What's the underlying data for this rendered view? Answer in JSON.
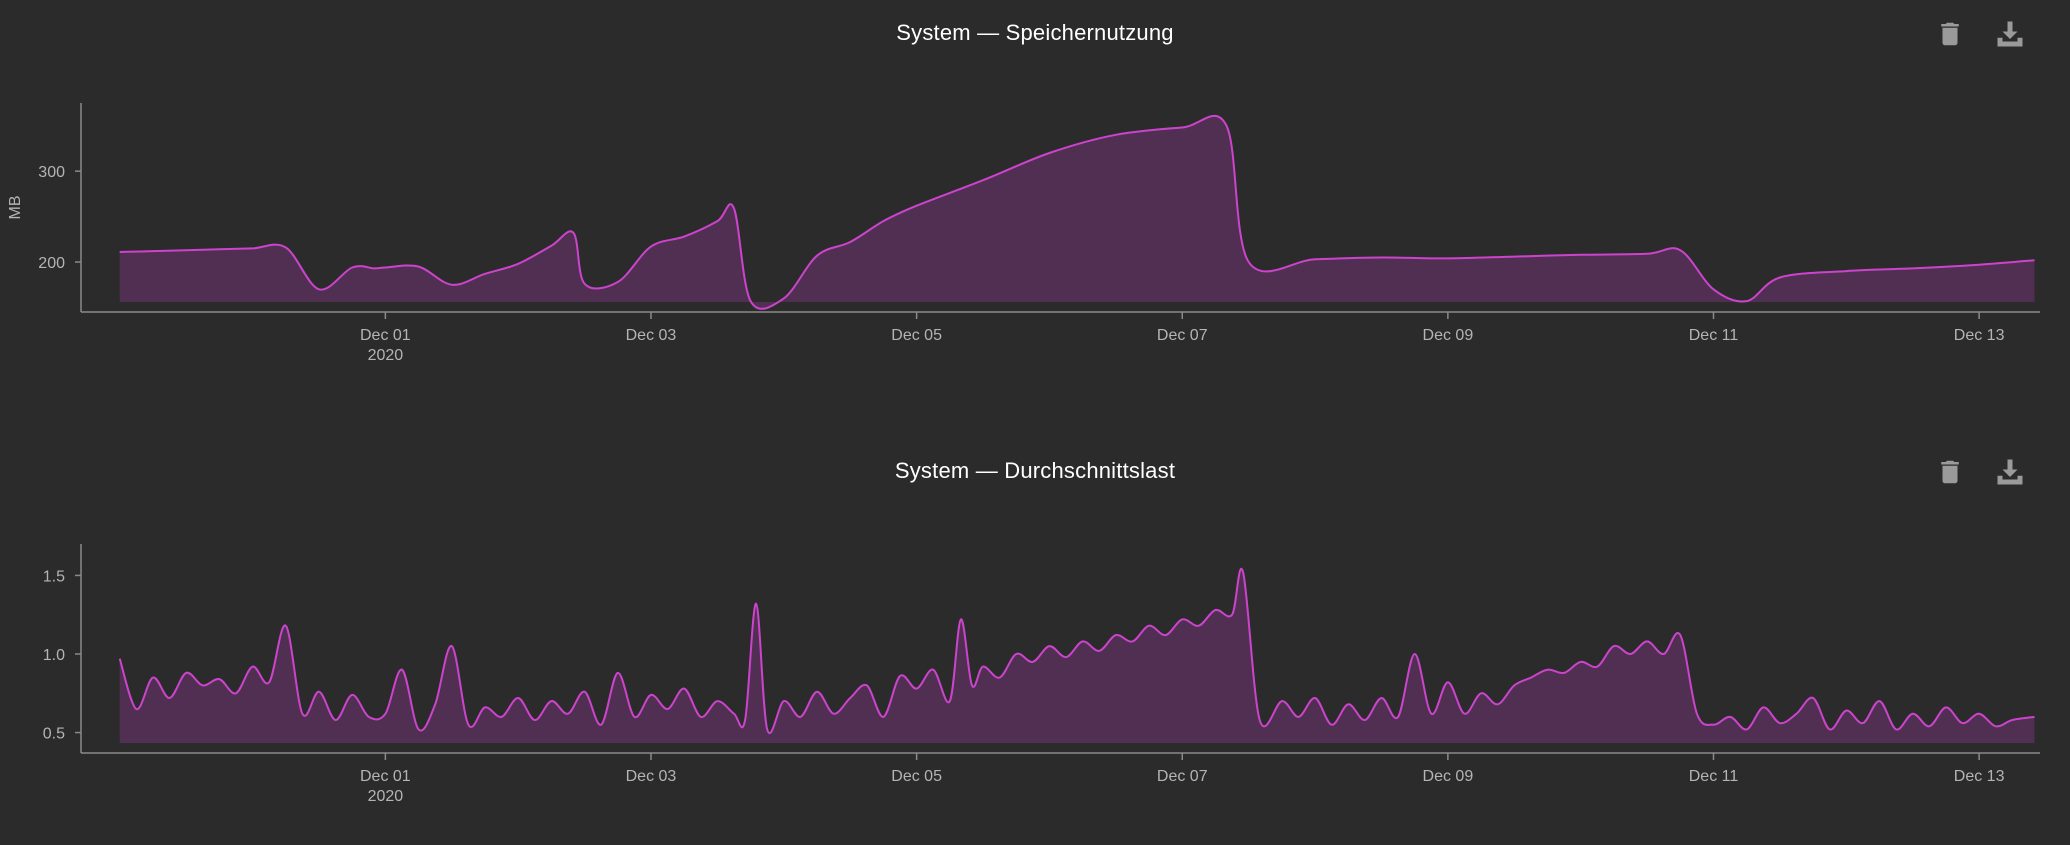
{
  "toolbar": {
    "delete_icon": "trash-icon",
    "download_icon": "download-icon"
  },
  "chart_data": [
    {
      "type": "area",
      "title": "System — Speichernutzung",
      "xlabel": "",
      "ylabel": "MB",
      "xlim": [
        "2020-11-28T17:00",
        "2020-12-13T11:00"
      ],
      "ylim": [
        145,
        375
      ],
      "yticks": [
        200,
        300
      ],
      "ytick_labels": [
        "200",
        "300"
      ],
      "xticks": [
        "2020-12-01",
        "2020-12-03",
        "2020-12-05",
        "2020-12-07",
        "2020-12-09",
        "2020-12-11",
        "2020-12-13"
      ],
      "xtick_labels": [
        "Dec 01",
        "Dec 03",
        "Dec 05",
        "Dec 07",
        "Dec 09",
        "Dec 11",
        "Dec 13"
      ],
      "year_label": "2020",
      "grid": false,
      "color": "#cc44cc",
      "fill_color": "#502f52",
      "series": [
        {
          "x": [
            "2020-11-29T00:00",
            "2020-11-29T06:00",
            "2020-11-29T12:00",
            "2020-11-29T18:00",
            "2020-11-30T00:00",
            "2020-11-30T06:00",
            "2020-11-30T12:00",
            "2020-11-30T18:00",
            "2020-11-30T22:00",
            "2020-12-01T00:00",
            "2020-12-01T06:00",
            "2020-12-01T12:00",
            "2020-12-01T18:00",
            "2020-12-02T00:00",
            "2020-12-02T06:00",
            "2020-12-02T10:00",
            "2020-12-02T12:00",
            "2020-12-02T18:00",
            "2020-12-03T00:00",
            "2020-12-03T06:00",
            "2020-12-03T12:00",
            "2020-12-03T15:00",
            "2020-12-03T18:00",
            "2020-12-04T00:00",
            "2020-12-04T06:00",
            "2020-12-04T12:00",
            "2020-12-04T18:00",
            "2020-12-05T00:00",
            "2020-12-05T12:00",
            "2020-12-06T00:00",
            "2020-12-06T12:00",
            "2020-12-07T00:00",
            "2020-12-07T08:00",
            "2020-12-07T12:00",
            "2020-12-08T00:00",
            "2020-12-08T12:00",
            "2020-12-09T00:00",
            "2020-12-09T12:00",
            "2020-12-10T00:00",
            "2020-12-10T12:00",
            "2020-12-10T18:00",
            "2020-12-11T00:00",
            "2020-12-11T06:00",
            "2020-12-11T12:00",
            "2020-12-12T00:00",
            "2020-12-12T12:00",
            "2020-12-13T00:00",
            "2020-12-13T10:00"
          ],
          "y": [
            211,
            212,
            213,
            214,
            215,
            216,
            170,
            194,
            193,
            194,
            195,
            175,
            187,
            198,
            218,
            232,
            176,
            178,
            217,
            228,
            245,
            259,
            157,
            160,
            207,
            222,
            245,
            262,
            290,
            320,
            340,
            348,
            350,
            200,
            203,
            205,
            204,
            206,
            208,
            209,
            213,
            170,
            157,
            183,
            190,
            193,
            197,
            202
          ]
        }
      ]
    },
    {
      "type": "area",
      "title": "System — Durchschnittslast",
      "xlabel": "",
      "ylabel": "",
      "xlim": [
        "2020-11-28T17:00",
        "2020-12-13T11:00"
      ],
      "ylim": [
        0.37,
        1.7
      ],
      "yticks": [
        0.5,
        1.0,
        1.5
      ],
      "ytick_labels": [
        "0.5",
        "1.0",
        "1.5"
      ],
      "xticks": [
        "2020-12-01",
        "2020-12-03",
        "2020-12-05",
        "2020-12-07",
        "2020-12-09",
        "2020-12-11",
        "2020-12-13"
      ],
      "xtick_labels": [
        "Dec 01",
        "Dec 03",
        "Dec 05",
        "Dec 07",
        "Dec 09",
        "Dec 11",
        "Dec 13"
      ],
      "year_label": "2020",
      "grid": false,
      "color": "#cc44cc",
      "fill_color": "#502f52",
      "series": [
        {
          "x": [
            "2020-11-29T00:00",
            "2020-11-29T03:00",
            "2020-11-29T06:00",
            "2020-11-29T09:00",
            "2020-11-29T12:00",
            "2020-11-29T15:00",
            "2020-11-29T18:00",
            "2020-11-29T21:00",
            "2020-11-30T00:00",
            "2020-11-30T03:00",
            "2020-11-30T06:00",
            "2020-11-30T09:00",
            "2020-11-30T12:00",
            "2020-11-30T15:00",
            "2020-11-30T18:00",
            "2020-11-30T21:00",
            "2020-12-01T00:00",
            "2020-12-01T03:00",
            "2020-12-01T06:00",
            "2020-12-01T09:00",
            "2020-12-01T12:00",
            "2020-12-01T15:00",
            "2020-12-01T18:00",
            "2020-12-01T21:00",
            "2020-12-02T00:00",
            "2020-12-02T03:00",
            "2020-12-02T06:00",
            "2020-12-02T09:00",
            "2020-12-02T12:00",
            "2020-12-02T15:00",
            "2020-12-02T18:00",
            "2020-12-02T21:00",
            "2020-12-03T00:00",
            "2020-12-03T03:00",
            "2020-12-03T06:00",
            "2020-12-03T09:00",
            "2020-12-03T12:00",
            "2020-12-03T15:00",
            "2020-12-03T17:00",
            "2020-12-03T19:00",
            "2020-12-03T21:00",
            "2020-12-04T00:00",
            "2020-12-04T03:00",
            "2020-12-04T06:00",
            "2020-12-04T09:00",
            "2020-12-04T12:00",
            "2020-12-04T15:00",
            "2020-12-04T18:00",
            "2020-12-04T21:00",
            "2020-12-05T00:00",
            "2020-12-05T03:00",
            "2020-12-05T06:00",
            "2020-12-05T08:00",
            "2020-12-05T10:00",
            "2020-12-05T12:00",
            "2020-12-05T15:00",
            "2020-12-05T18:00",
            "2020-12-05T21:00",
            "2020-12-06T00:00",
            "2020-12-06T03:00",
            "2020-12-06T06:00",
            "2020-12-06T09:00",
            "2020-12-06T12:00",
            "2020-12-06T15:00",
            "2020-12-06T18:00",
            "2020-12-06T21:00",
            "2020-12-07T00:00",
            "2020-12-07T03:00",
            "2020-12-07T06:00",
            "2020-12-07T09:00",
            "2020-12-07T11:00",
            "2020-12-07T14:00",
            "2020-12-07T18:00",
            "2020-12-07T21:00",
            "2020-12-08T00:00",
            "2020-12-08T03:00",
            "2020-12-08T06:00",
            "2020-12-08T09:00",
            "2020-12-08T12:00",
            "2020-12-08T15:00",
            "2020-12-08T18:00",
            "2020-12-08T21:00",
            "2020-12-09T00:00",
            "2020-12-09T03:00",
            "2020-12-09T06:00",
            "2020-12-09T09:00",
            "2020-12-09T12:00",
            "2020-12-09T15:00",
            "2020-12-09T18:00",
            "2020-12-09T21:00",
            "2020-12-10T00:00",
            "2020-12-10T03:00",
            "2020-12-10T06:00",
            "2020-12-10T09:00",
            "2020-12-10T12:00",
            "2020-12-10T15:00",
            "2020-12-10T18:00",
            "2020-12-10T21:00",
            "2020-12-11T00:00",
            "2020-12-11T03:00",
            "2020-12-11T06:00",
            "2020-12-11T09:00",
            "2020-12-11T12:00",
            "2020-12-11T15:00",
            "2020-12-11T18:00",
            "2020-12-11T21:00",
            "2020-12-12T00:00",
            "2020-12-12T03:00",
            "2020-12-12T06:00",
            "2020-12-12T09:00",
            "2020-12-12T12:00",
            "2020-12-12T15:00",
            "2020-12-12T18:00",
            "2020-12-12T21:00",
            "2020-12-13T00:00",
            "2020-12-13T03:00",
            "2020-12-13T06:00",
            "2020-12-13T10:00"
          ],
          "y": [
            0.97,
            0.65,
            0.85,
            0.72,
            0.88,
            0.8,
            0.84,
            0.75,
            0.92,
            0.82,
            1.18,
            0.62,
            0.76,
            0.58,
            0.74,
            0.6,
            0.62,
            0.9,
            0.52,
            0.68,
            1.05,
            0.55,
            0.66,
            0.6,
            0.72,
            0.58,
            0.7,
            0.62,
            0.76,
            0.55,
            0.88,
            0.6,
            0.74,
            0.65,
            0.78,
            0.6,
            0.7,
            0.62,
            0.58,
            1.32,
            0.52,
            0.7,
            0.6,
            0.76,
            0.62,
            0.72,
            0.8,
            0.6,
            0.86,
            0.78,
            0.9,
            0.7,
            1.22,
            0.8,
            0.92,
            0.85,
            1.0,
            0.95,
            1.05,
            0.98,
            1.08,
            1.02,
            1.12,
            1.08,
            1.18,
            1.12,
            1.22,
            1.18,
            1.28,
            1.25,
            1.52,
            0.58,
            0.7,
            0.6,
            0.72,
            0.55,
            0.68,
            0.58,
            0.72,
            0.6,
            1.0,
            0.62,
            0.82,
            0.62,
            0.75,
            0.68,
            0.8,
            0.85,
            0.9,
            0.88,
            0.95,
            0.92,
            1.05,
            1.0,
            1.08,
            1.0,
            1.12,
            0.62,
            0.55,
            0.6,
            0.52,
            0.66,
            0.56,
            0.62,
            0.72,
            0.52,
            0.64,
            0.56,
            0.7,
            0.52,
            0.62,
            0.54,
            0.66,
            0.56,
            0.62,
            0.54,
            0.58,
            0.6
          ]
        }
      ]
    }
  ]
}
